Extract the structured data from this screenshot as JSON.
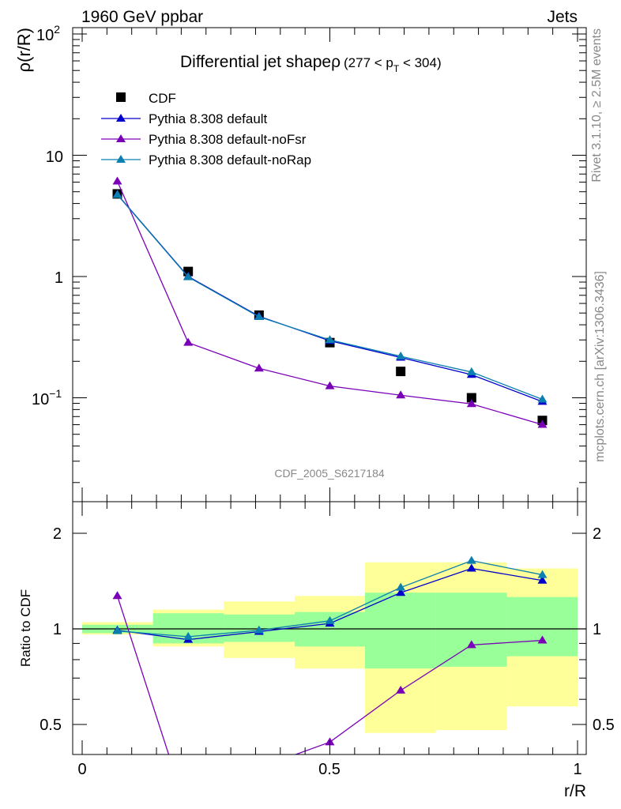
{
  "header": {
    "left": "1960 GeV ppbar",
    "right": "Jets",
    "side_top": "Rivet 3.1.10, ≥ 2.5M events",
    "side_bottom": "mcplots.cern.ch [arXiv:1306.3436]"
  },
  "main_plot": {
    "title_main": "Differential jet shape",
    "title_rho": "ρ",
    "title_cut_a": "(277 < p",
    "title_cut_sub": "T",
    "title_cut_b": " < 304)",
    "ylabel": "ρ(r/R)",
    "analysis_tag": "CDF_2005_S6217184",
    "ytick_labels": {
      "t100": "10",
      "t100_exp": "2",
      "t10": "10",
      "t1": "1",
      "t01": "10",
      "t01_exp": "−1"
    }
  },
  "ratio_plot": {
    "ylabel": "Ratio to CDF",
    "ytick_labels": [
      "0.5",
      "1",
      "2"
    ],
    "xlabel": "r/R",
    "xtick_labels": [
      "0",
      "0.5",
      "1"
    ]
  },
  "legend": [
    {
      "label": "CDF",
      "color": "#000000",
      "marker": "square"
    },
    {
      "label": "Pythia 8.308 default",
      "color": "#0000cc",
      "marker": "triangle"
    },
    {
      "label": "Pythia 8.308 default-noFsr",
      "color": "#7a00b8",
      "marker": "triangle"
    },
    {
      "label": "Pythia 8.308 default-noRap",
      "color": "#0a7fb0",
      "marker": "triangle"
    }
  ],
  "chart_data": {
    "type": "line",
    "title": "Differential jet shape ρ (277 < pT < 304)",
    "xlabel": "r/R",
    "ylabel": "ρ(r/R)",
    "yscale": "log",
    "xlim": [
      -0.02,
      1.02
    ],
    "ylim": [
      0.02,
      120
    ],
    "x": [
      0.071,
      0.214,
      0.357,
      0.5,
      0.643,
      0.786,
      0.929
    ],
    "bin_edges": [
      0.0,
      0.143,
      0.286,
      0.429,
      0.571,
      0.714,
      0.857,
      1.0
    ],
    "series": [
      {
        "name": "CDF",
        "values": [
          4.8,
          1.1,
          0.48,
          0.285,
          0.165,
          0.1,
          0.065
        ]
      },
      {
        "name": "Pythia 8.308 default",
        "values": [
          4.75,
          1.0,
          0.47,
          0.295,
          0.215,
          0.155,
          0.093
        ]
      },
      {
        "name": "Pythia 8.308 default-noFsr",
        "values": [
          6.1,
          0.285,
          0.175,
          0.125,
          0.105,
          0.089,
          0.06
        ]
      },
      {
        "name": "Pythia 8.308 default-noRap",
        "values": [
          4.72,
          0.99,
          0.465,
          0.3,
          0.22,
          0.163,
          0.097
        ]
      }
    ],
    "ratio": {
      "ylabel": "Ratio to CDF",
      "yscale": "log",
      "ylim": [
        0.43,
        2.3
      ],
      "uncertainty_green": [
        [
          0.97,
          1.03
        ],
        [
          0.9,
          1.12
        ],
        [
          0.91,
          1.11
        ],
        [
          0.88,
          1.13
        ],
        [
          0.75,
          1.3
        ],
        [
          0.76,
          1.3
        ],
        [
          0.82,
          1.26
        ]
      ],
      "uncertainty_yellow": [
        [
          0.96,
          1.05
        ],
        [
          0.88,
          1.15
        ],
        [
          0.81,
          1.22
        ],
        [
          0.75,
          1.27
        ],
        [
          0.47,
          1.62
        ],
        [
          0.48,
          1.62
        ],
        [
          0.57,
          1.55
        ]
      ],
      "series": [
        {
          "name": "Pythia 8.308 default",
          "values": [
            0.99,
            0.925,
            0.98,
            1.04,
            1.3,
            1.55,
            1.42
          ]
        },
        {
          "name": "Pythia 8.308 default-noFsr",
          "values": [
            1.27,
            0.26,
            0.365,
            0.44,
            0.64,
            0.89,
            0.92
          ]
        },
        {
          "name": "Pythia 8.308 default-noRap",
          "values": [
            0.985,
            0.945,
            0.99,
            1.06,
            1.35,
            1.64,
            1.48
          ]
        }
      ]
    }
  }
}
